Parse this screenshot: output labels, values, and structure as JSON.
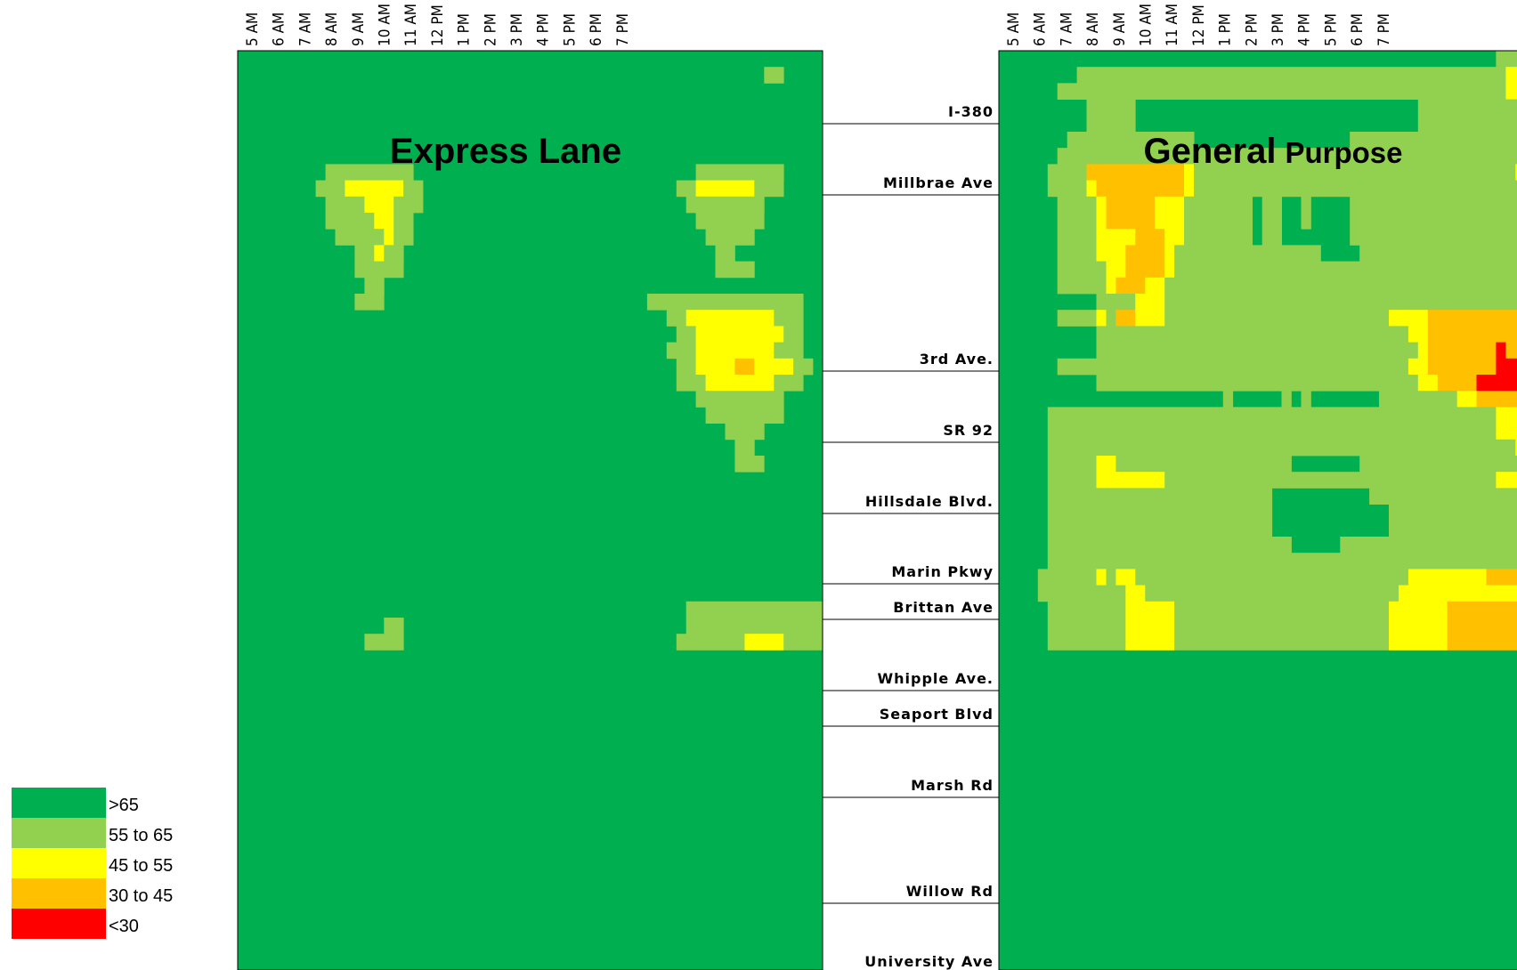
{
  "chart_data": {
    "type": "heatmap",
    "time_labels": [
      "5 AM",
      "6 AM",
      "7 AM",
      "8 AM",
      "9 AM",
      "10 AM",
      "11 AM",
      "12 PM",
      "1 PM",
      "2 PM",
      "3 PM",
      "4 PM",
      "5 PM",
      "6 PM",
      "7 PM"
    ],
    "segments": [
      "I-380",
      "Millbrae Ave",
      "3rd Ave.",
      "SR 92",
      "Hillsdale Blvd.",
      "Marin Pkwy",
      "Brittan Ave",
      "Whipple Ave.",
      "Seaport Blvd",
      "Marsh Rd",
      "Willow Rd",
      "University Ave"
    ],
    "legend": [
      {
        "label": ">65",
        "color": "#00b050",
        "code": "G"
      },
      {
        "label": "55 to 65",
        "color": "#92d050",
        "code": "L"
      },
      {
        "label": "45 to 55",
        "color": "#ffff00",
        "code": "Y"
      },
      {
        "label": "30 to 45",
        "color": "#ffc000",
        "code": "O"
      },
      {
        "label": "<30",
        "color": "#ff0000",
        "code": "R"
      }
    ],
    "panels": [
      {
        "title_bold": "Express Lane",
        "title_rest": "",
        "speed_grid": [
          "GGGGGGGGGGGGGGGGGGGGGGGGGGGGGGGGGGGGGGGGGGGGGGGGGGGGGGGGGGGG",
          "GGGGGGGGGGGGGGGGGGGGGGGGGGGGGGGGGGGGGGGGGGGGGGGGGGGGGGLLGGGG",
          "GGGGGGGGGGGGGGGGGGGGGGGGGGGGGGGGGGGGGGGGGGGGGGGGGGGGGGGGGGGG",
          "GGGGGGGGGGGGGGGGGGGGGGGGGGGGGGGGGGGGGGGGGGGGGGGGGGGGGGGGGGGG",
          "GGGGGGGGGGGGGGGGGGGGGGGGGGGGGGGGGGGGGGGGGGGGGGGGGGGGGGGGGGGG",
          "GGGGGGGGGGGGGGGGGGGGGGGGGGGGGGGGGGGGGGGGGGGGGGGGGGGGGGGGGGGG",
          "GGGGGGGGGGGGGGGGGGGGGGGGGGGGGGGGGGGGGGGGGGGGGGGGGGGGGGGGGGGG",
          "GGGGGGGGGLLLLLLLLLGGGGGGGGGGGGGGGGGGGGGGGGGGGGGLLLLLLLLLGGGG",
          "GGGGGGGGLLLYYYYYYLLGGGGGGGGGGGGGGGGGGGGGGGGGGLLYYYYYYLLLGGGG",
          "GGGGGGGGGLLLLYYYLLLGGGGGGGGGGGGGGGGGGGGGGGGGGGLLLLLLLLGGGGGG",
          "GGGGGGGGGLLLLLYYLLGGGGGGGGGGGGGGGGGGGGGGGGGGGGGLLLLLLLGGGGGG",
          "GGGGGGGGGGLLLLLYLLGGGGGGGGGGGGGGGGGGGGGGGGGGGGGGLLLLLGGGGGGG",
          "GGGGGGGGGGGGLLYLLGGGGGGGGGGGGGGGGGGGGGGGGGGGGGGGGLLGGGGGGGGG",
          "GGGGGGGGGGGGLLLLLGGGGGGGGGGGGGGGGGGGGGGGGGGGGGGGGLLLLGGGGGGG",
          "GGGGGGGGGGGGGLLGGGGGGGGGGGGGGGGGGGGGGGGGGGGGGGGGGGGGGGGGGGGG",
          "GGGGGGGGGGGGLLLGGGGGGGGGGGGGGGGGGGGGGGGGGGLLLLLLLLLLLLLLLLGG",
          "GGGGGGGGGGGGGGGGGGGGGGGGGGGGGGGGGGGGGGGGGGGGLLYYYYYYYYYLLLGG",
          "GGGGGGGGGGGGGGGGGGGGGGGGGGGGGGGGGGGGGGGGGGGGGLLYYYYYYYYYLLGG",
          "GGGGGGGGGGGGGGGGGGGGGGGGGGGGGGGGGGGGGGGGGGGGLLLYYYYYYYYLLLGG",
          "GGGGGGGGGGGGGGGGGGGGGGGGGGGGGGGGGGGGGGGGGGGGGLLYYYYOOYYYYLLG",
          "GGGGGGGGGGGGGGGGGGGGGGGGGGGGGGGGGGGGGGGGGGGGGLLLYYYYYYYLLLGG",
          "GGGGGGGGGGGGGGGGGGGGGGGGGGGGGGGGGGGGGGGGGGGGGGGLLLLLLLLLGGGG",
          "GGGGGGGGGGGGGGGGGGGGGGGGGGGGGGGGGGGGGGGGGGGGGGGGLLLLLLLLGGGG",
          "GGGGGGGGGGGGGGGGGGGGGGGGGGGGGGGGGGGGGGGGGGGGGGGGGGLLLLGGGGGG",
          "GGGGGGGGGGGGGGGGGGGGGGGGGGGGGGGGGGGGGGGGGGGGGGGGGGGLLGGGGGGG",
          "GGGGGGGGGGGGGGGGGGGGGGGGGGGGGGGGGGGGGGGGGGGGGGGGGGGLLLGGGGGG",
          "GGGGGGGGGGGGGGGGGGGGGGGGGGGGGGGGGGGGGGGGGGGGGGGGGGGGGGGGGGGG",
          "GGGGGGGGGGGGGGGGGGGGGGGGGGGGGGGGGGGGGGGGGGGGGGGGGGGGGGGGGGGG",
          "GGGGGGGGGGGGGGGGGGGGGGGGGGGGGGGGGGGGGGGGGGGGGGGGGGGGGGGGGGGG",
          "GGGGGGGGGGGGGGGGGGGGGGGGGGGGGGGGGGGGGGGGGGGGGGGGGGGGGGGGGGGG",
          "GGGGGGGGGGGGGGGGGGGGGGGGGGGGGGGGGGGGGGGGGGGGGGGGGGGGGGGGGGGG",
          "GGGGGGGGGGGGGGGGGGGGGGGGGGGGGGGGGGGGGGGGGGGGGGGGGGGGGGGGGGGG",
          "GGGGGGGGGGGGGGGGGGGGGGGGGGGGGGGGGGGGGGGGGGGGGGGGGGGGGGGGGGGG",
          "GGGGGGGGGGGGGGGGGGGGGGGGGGGGGGGGGGGGGGGGGGGGGGGGGGGGGGGGGGGG",
          "GGGGGGGGGGGGGGGGGGGGGGGGGGGGGGGGGGGGGGGGGGGGGGLLLLLLLLLLLLLLLL",
          "GGGGGGGGGGGGGGGLLGGGGGGGGGGGGGGGGGGGGGGGGGGGGGLLLLLLLLLLLLLLGG",
          "GGGGGGGGGGGGGLLLLGGGGGGGGGGGGGGGGGGGGGGGGGGGGLLLLLLLYYYYLLLLLG"
        ]
      },
      {
        "title_bold": "General",
        "title_rest": "Purpose",
        "speed_grid": [
          "GGGGGGGGGGGGGGGGGGGGGGGGGGGGGGGGGGGGGGGGGGGGGGGGGGGLLLLLLLLLL",
          "GGGGGGGGLLLLLLLLLLLLLLLLLLLLLLLLLLLLLLLLLLLLLLLLLLLLYYYYYLLLL",
          "GGGGGGLLLLLLLLLLLLLLLLLLLLLLLLLLLLLLLLLLLLLLLLLLLLLLYYYYYLLLL",
          "GGGGGGGGGLLLLLGGGGGGGGGGGGGGGGGGGGGGGGGGGGGLLLLLLLLLLLLLLLLLGG",
          "GGGGGGGGGLLLLLGGGGGGGGGGGGGGGGGGGGGGGGGGGGGLLLLLLLLLLLLLLLLLGG",
          "GGGGGGGLLLLLLLLLLLLLGGGGGGGGGGGGGGGGLLLLLLLLLLLLLLLLLLLLLLLLL",
          "GGGGGGLLLLLLLLLLLLLLLLLLLLLLLLLLLLLLLLLLLLLLLLLLLLLLLLYLLLLLL",
          "GGGGGLLLLOOOOOOOOOOYLLLLLLLLLLLLLLLLLLLLLLLLLLLLLLLLLYYYOOOOYYYYL",
          "GGGGGLLLLYOOOOOOOOOYLLLLLLLLLLLLLLLLLLLLLLLLLLLLLLLLLLLYYYYYYYYLL",
          "GGGGGGLLLLYOOOOOYYYLLLLLLLGLLGGLGGGGLLLLLLLLLLLLLLLLLLLLLYYYYYLLL",
          "GGGGGGLLLLYOOOOOYYYLLLLLLLGLLGGLGGGGLLLLLLLLLLLLLLLLLLLLLYYYYYLLL",
          "GGGGGGLLLLYYYYOOOYYLLLLLLLGLLGGGGGGGLLLLLLLLLLLLLLLLLLLLLYYYYYLLL",
          "GGGGGGLLLLYYYOOOOYLLLLLLLLLLLLLLLGGGGLLLLLLLLLLLLLLLLLLLLLLYLLLLL",
          "GGGGGGLLLLLYYOOOOYLLLLLLLLLLLLLLLLLLLLLLLLLLLLLLLLLLLLLLLLLLLLLLL",
          "GGGGGGLLLLLYOOOYYLLLLLLLLLLLLLLLLLLLLLLLLLLLLLLLLLLLLLLLLLLLLLLLL",
          "GGGGGGGGGGLLLLYYYLLLLLLLLLLLLLLLLLLLLLLLLLLLLLLLLLLLLLLLLLLLLLLLL",
          "GGGGGGLLLLYLOOYYYLLLLLLLLLLLLLLLLLLLLLLLYYYYOOOOOOOOOOOOOOOOYYYY",
          "GGGGGGGGGGLLLLLLLLLLLLLLLLLLLLLLLLLLLLLLLLYYOOOOOOOOOOOOOOOLYYY",
          "GGGGGGGGGGLLLLLLLLLLLLLLLLLLLLLLLLLLLLLLLLLYOOOOOOOROOOOOOYYLLL",
          "GGGGGGLLLLLLLLLLLLLLLLLLLLLLLLLLLLLLLLLLLLYYOOOOOOORRROOOOYYLLL",
          "GGGGGGGGGGLLLLLLLLLLLLLLLLLLLLLLLLLLLLLLLLLYYOOOORRRRROOYYYLLL",
          "GGGGGGGGGGGGGGGGGGGGGGGLGGGGGLGLGGGGGGGLLLLLLLLYYOOOOOYYYLLLLLG",
          "GGGGGLLLLLLLLLLLLLLLLLLLLLLLLLLLLLLLLLLLLLLLLLLLLLLYYYYYLLLLLLL",
          "GGGGGLLLLLLLLLLLLLLLLLLLLLLLLLLLLLLLLLLLLLLLLLLLLLLYYYYYYLLLLLL",
          "GGGGGLLLLLLLLLLLLLLLLLLLLLLLLLLLLLLLLLLLLLLLLLLLLLLLLYYLLLLLLLL",
          "GGGGGLLLLLYYLLLLLLLLLLLLLLLLLLGGGGGGGLLLLLLLLLLLLLLLLLYYLLLLLLLL",
          "GGGGGLLLLLYYYYYYYLLLLLLLLLLLLLLLLLLLLLLLLLLLLLLLLLLYYYYYYYLLLLLL",
          "GGGGGLLLLLLLLLLLLLLLLLLLLLLLGGGGGGGGGGLLLLLLLLLLLLLLLLLLLLLLLLL",
          "GGGGGLLLLLLLLLLLLLLLLLLLLLLLGGGGGGGGGGGGLLLLLLLLLLLLLLLLLLLLLLL",
          "GGGGGLLLLLLLLLLLLLLLLLLLLLLLGGGGGGGGGGGGLLLLLLLLLLLLLLLLLLLLLLL",
          "GGGGGLLLLLLLLLLLLLLLLLLLLLLLLLGGGGGLLLLLLLLLLLLLLLLLLLLLLLLLLLL",
          "GGGGGLLLLLLLLLLLLLLLLLLLLLLLLLLLLLLLLLLLLLLLLLLLLLLLLLLLLLLLLLL",
          "GGGGLLLLLLYLYYLLLLLLLLLLLLLLLLLLLLLLLLLLLLYYYYYYYYOOOOYYYYYLLL",
          "GGGGLLLLLLLLLYYLLLLLLLLLLLLLLLLLLLLLLLLLLYYYYYYYYYYYYYYYYYLLLL",
          "GGGGGLLLLLLLLYYYYYLLLLLLLLLLLLLLLLLLLLLLYYYYYYOOOOOOOOOOYYYYLL",
          "GGGGGLLLLLLLLYYYYYLLLLLLLLLLLLLLLLLLLLLLYYYYYYOOOOOOOOOOYYYYLL",
          "GGGGGLLLLLLLLYYYYYLLLLLLLLLLLLLLLLLLLLLLYYYYYYOOOOOOOOOOYYYYLL"
        ]
      }
    ]
  }
}
